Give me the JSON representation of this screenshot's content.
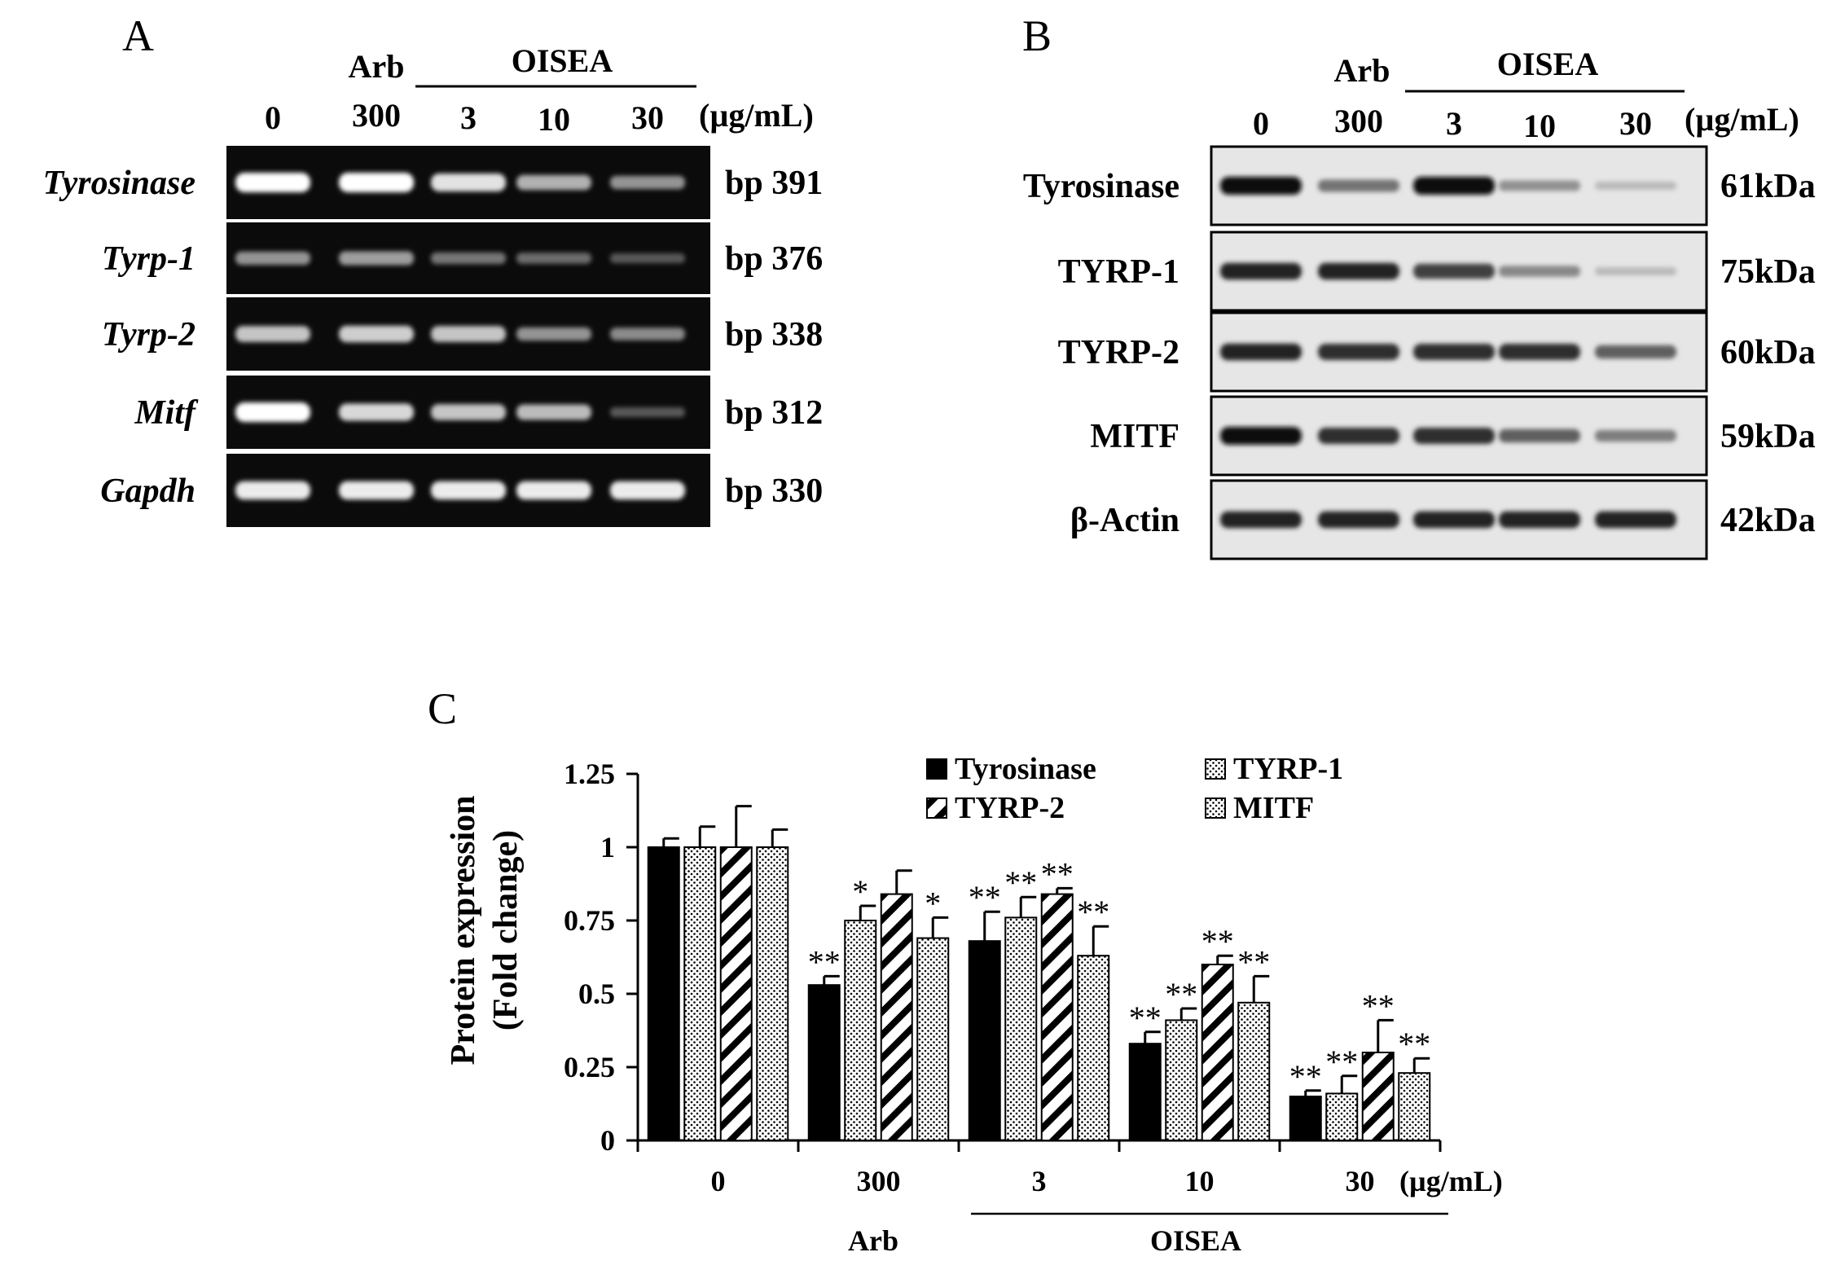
{
  "panel_a": {
    "label": "A",
    "group_arb": "Arb",
    "group_oisea": "OISEA",
    "lanes": [
      "0",
      "300",
      "3",
      "10",
      "30"
    ],
    "unit": "(µg/mL)",
    "rows": [
      {
        "gene": "Tyrosinase",
        "size": "bp 391",
        "intensity": [
          1.0,
          1.0,
          0.85,
          0.6,
          0.45
        ]
      },
      {
        "gene": "Tyrp-1",
        "size": "bp 376",
        "intensity": [
          0.45,
          0.5,
          0.3,
          0.25,
          0.15
        ]
      },
      {
        "gene": "Tyrp-2",
        "size": "bp 338",
        "intensity": [
          0.7,
          0.75,
          0.7,
          0.45,
          0.4
        ]
      },
      {
        "gene": "Mitf",
        "size": "bp 312",
        "intensity": [
          1.0,
          0.8,
          0.7,
          0.65,
          0.15
        ]
      },
      {
        "gene": "Gapdh",
        "size": "bp 330",
        "intensity": [
          0.9,
          0.9,
          0.9,
          0.9,
          0.9
        ]
      }
    ]
  },
  "panel_b": {
    "label": "B",
    "group_arb": "Arb",
    "group_oisea": "OISEA",
    "lanes": [
      "0",
      "300",
      "3",
      "10",
      "30"
    ],
    "unit": "(µg/mL)",
    "rows": [
      {
        "protein": "Tyrosinase",
        "size": "61kDa",
        "intensity": [
          1.0,
          0.5,
          1.0,
          0.35,
          0.15
        ]
      },
      {
        "protein": "TYRP-1",
        "size": "75kDa",
        "intensity": [
          0.9,
          0.9,
          0.75,
          0.4,
          0.15
        ]
      },
      {
        "protein": "TYRP-2",
        "size": "60kDa",
        "intensity": [
          0.9,
          0.85,
          0.85,
          0.85,
          0.6
        ]
      },
      {
        "protein": "MITF",
        "size": "59kDa",
        "intensity": [
          1.0,
          0.85,
          0.85,
          0.6,
          0.45
        ]
      },
      {
        "protein": "β-Actin",
        "size": "42kDa",
        "intensity": [
          0.9,
          0.9,
          0.9,
          0.9,
          0.9
        ]
      }
    ]
  },
  "panel_c": {
    "label": "C",
    "unit": "(µg/mL)",
    "group_arb": "Arb",
    "group_oisea": "OISEA"
  },
  "chart_data": {
    "type": "bar",
    "ylabel_line1": "Protein expression",
    "ylabel_line2": "(Fold change)",
    "ylim": [
      0,
      1.25
    ],
    "yticks": [
      "0",
      "0.25",
      "0.5",
      "0.75",
      "1",
      "1.25"
    ],
    "ytick_values": [
      0,
      0.25,
      0.5,
      0.75,
      1,
      1.25
    ],
    "categories": [
      "0",
      "300",
      "3",
      "10",
      "30"
    ],
    "legend_placement": "top-right",
    "series": [
      {
        "name": "Tyrosinase",
        "pattern": "solid",
        "values": [
          1.0,
          0.53,
          0.68,
          0.33,
          0.15
        ],
        "errors": [
          0.03,
          0.03,
          0.1,
          0.04,
          0.02
        ],
        "sig": [
          "",
          "**",
          "**",
          "**",
          "**"
        ]
      },
      {
        "name": "TYRP-1",
        "pattern": "dots",
        "values": [
          1.0,
          0.75,
          0.76,
          0.41,
          0.16
        ],
        "errors": [
          0.07,
          0.05,
          0.07,
          0.04,
          0.06
        ],
        "sig": [
          "",
          "*",
          "**",
          "**",
          "**"
        ]
      },
      {
        "name": "TYRP-2",
        "pattern": "diagonal",
        "values": [
          1.0,
          0.84,
          0.84,
          0.6,
          0.3
        ],
        "errors": [
          0.14,
          0.08,
          0.02,
          0.03,
          0.11
        ],
        "sig": [
          "",
          "",
          "**",
          "**",
          "**"
        ]
      },
      {
        "name": "MITF",
        "pattern": "dots",
        "values": [
          1.0,
          0.69,
          0.63,
          0.47,
          0.23
        ],
        "errors": [
          0.06,
          0.07,
          0.1,
          0.09,
          0.05
        ],
        "sig": [
          "",
          "*",
          "**",
          "**",
          "**"
        ]
      }
    ]
  }
}
